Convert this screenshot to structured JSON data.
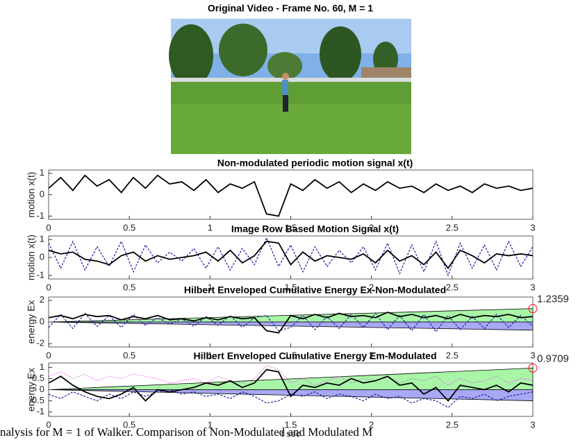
{
  "image": {
    "title": "Original Video - Frame No. 60, M = 1"
  },
  "chart_data": [
    {
      "type": "line",
      "title": "Non-modulated periodic motion signal x(t)",
      "ylabel": "motion x(t)",
      "xlim": [
        0,
        3
      ],
      "xticks": [
        0,
        0.5,
        1,
        1.5,
        2,
        2.5,
        3
      ],
      "ylim": [
        -1.15,
        1.15
      ],
      "yticks": [
        -1,
        0,
        1
      ],
      "x": [
        0,
        0.075,
        0.15,
        0.225,
        0.3,
        0.375,
        0.45,
        0.525,
        0.6,
        0.675,
        0.75,
        0.825,
        0.9,
        0.975,
        1.05,
        1.125,
        1.2,
        1.275,
        1.35,
        1.425,
        1.5,
        1.575,
        1.65,
        1.725,
        1.8,
        1.875,
        1.95,
        2.025,
        2.1,
        2.175,
        2.25,
        2.325,
        2.4,
        2.475,
        2.55,
        2.625,
        2.7,
        2.775,
        2.85,
        2.925,
        3
      ],
      "series": [
        {
          "color": "#000000",
          "style": "solid",
          "values": [
            0.3,
            0.8,
            0.2,
            0.9,
            0.4,
            0.7,
            0.1,
            0.8,
            0.3,
            0.9,
            0.5,
            0.6,
            0.2,
            0.7,
            0.1,
            0.5,
            0.3,
            0.6,
            -0.9,
            -1,
            0.5,
            0.2,
            0.7,
            0.3,
            0.6,
            0.1,
            0.5,
            0.2,
            0.6,
            0.3,
            0.4,
            0.1,
            0.5,
            0.2,
            0.4,
            0.1,
            0.5,
            0.3,
            0.4,
            0.2,
            0.3
          ]
        }
      ]
    },
    {
      "type": "line",
      "title": "Image Row Based Motion Signal x(t)",
      "ylabel": "motion x(t)",
      "xlim": [
        0,
        3
      ],
      "xticks": [
        0,
        0.5,
        1,
        1.5,
        2,
        2.5,
        3
      ],
      "ylim": [
        -1.2,
        1.2
      ],
      "yticks": [
        -1,
        0,
        1
      ],
      "x": [
        0,
        0.075,
        0.15,
        0.225,
        0.3,
        0.375,
        0.45,
        0.525,
        0.6,
        0.675,
        0.75,
        0.825,
        0.9,
        0.975,
        1.05,
        1.125,
        1.2,
        1.275,
        1.35,
        1.425,
        1.5,
        1.575,
        1.65,
        1.725,
        1.8,
        1.875,
        1.95,
        2.025,
        2.1,
        2.175,
        2.25,
        2.325,
        2.4,
        2.475,
        2.55,
        2.625,
        2.7,
        2.775,
        2.85,
        2.925,
        3
      ],
      "series": [
        {
          "color": "#1a1aa0",
          "style": "dashed",
          "values": [
            0.8,
            -0.6,
            0.9,
            -0.7,
            0.6,
            -0.5,
            0.9,
            -0.8,
            0.7,
            -0.3,
            0.3,
            -0.2,
            0.5,
            -0.6,
            0.6,
            -0.7,
            0.5,
            -0.4,
            1.1,
            -0.5,
            0.7,
            -0.8,
            0.6,
            -0.5,
            0.4,
            -0.3,
            0.6,
            -0.7,
            0.8,
            -0.9,
            0.7,
            -0.8,
            0.9,
            -1,
            0.8,
            -0.6,
            0.7,
            -0.7,
            0.9,
            -0.5,
            0.6
          ]
        },
        {
          "color": "#000000",
          "style": "solid",
          "values": [
            0.4,
            0.2,
            0.3,
            -0.1,
            -0.2,
            -0.4,
            0.1,
            0.3,
            -0.2,
            0.1,
            -0.1,
            0,
            0.1,
            0.3,
            -0.2,
            0.4,
            -0.3,
            0.1,
            0.9,
            0.8,
            -0.4,
            0.3,
            -0.2,
            0.1,
            0,
            -0.1,
            0.2,
            -0.3,
            0.4,
            -0.2,
            0.1,
            -0.4,
            0.3,
            -0.6,
            0.4,
            0.1,
            -0.3,
            0.2,
            0.1,
            0.2,
            0.1
          ]
        }
      ]
    },
    {
      "type": "line",
      "title": "Hilbert Enveloped Cumulative Energy Ex-Non-Modulated",
      "ylabel": "energy Ex",
      "xlim": [
        0,
        3
      ],
      "xticks": [
        0,
        0.5,
        1,
        1.5,
        2,
        2.5,
        3
      ],
      "ylim": [
        -2.3,
        2.3
      ],
      "yticks": [
        -2,
        0,
        2
      ],
      "area_x": [
        0,
        3
      ],
      "areas": [
        {
          "color": "#a8f5a8",
          "values": [
            0,
            1.2359
          ]
        },
        {
          "color": "#a8a8f5",
          "values": [
            0,
            -0.75
          ]
        }
      ],
      "annotation": {
        "x": 3,
        "y": 1.2359,
        "color": "#ff3030"
      },
      "x": [
        0,
        0.075,
        0.15,
        0.225,
        0.3,
        0.375,
        0.45,
        0.525,
        0.6,
        0.675,
        0.75,
        0.825,
        0.9,
        0.975,
        1.05,
        1.125,
        1.2,
        1.275,
        1.35,
        1.425,
        1.5,
        1.575,
        1.65,
        1.725,
        1.8,
        1.875,
        1.95,
        2.025,
        2.1,
        2.175,
        2.25,
        2.325,
        2.4,
        2.475,
        2.55,
        2.625,
        2.7,
        2.775,
        2.85,
        2.925,
        3
      ],
      "series": [
        {
          "color": "#1a1aa0",
          "style": "dashed",
          "values": [
            -0.5,
            0.7,
            -0.6,
            0.8,
            -0.4,
            0.6,
            -0.5,
            0.7,
            -0.3,
            0.4,
            -0.2,
            0.3,
            -0.4,
            0.5,
            -0.3,
            0.6,
            -0.5,
            0.4,
            0.6,
            -0.8,
            -0.5,
            0.6,
            -0.7,
            0.5,
            -0.6,
            0.7,
            -0.5,
            0.8,
            -0.7,
            0.6,
            -0.8,
            0.7,
            -0.9,
            0.6,
            -0.7,
            0.5,
            -0.6,
            0.7,
            -0.5,
            0.6,
            -0.4
          ]
        },
        {
          "color": "#000000",
          "style": "solid",
          "values": [
            0.4,
            0.6,
            0.3,
            0.7,
            0.5,
            0.6,
            0.2,
            0.5,
            0.3,
            0.6,
            0.2,
            0.3,
            0.1,
            0.4,
            0.2,
            0.5,
            0.3,
            0.4,
            -0.8,
            -1,
            0.6,
            0.3,
            0.7,
            0.4,
            0.8,
            0.5,
            0.6,
            0.4,
            0.9,
            0.5,
            0.7,
            0.4,
            0.6,
            0.3,
            0.7,
            0.4,
            0.6,
            0.5,
            0.7,
            0.4,
            0.5
          ]
        }
      ]
    },
    {
      "type": "line",
      "title": "Hilbert Enveloped Cumulative Energy Em-Modulated",
      "ylabel": "energy Ex",
      "xlabel": "t sec",
      "xlim": [
        0,
        3
      ],
      "xticks": [
        0,
        0.5,
        1,
        1.5,
        2,
        2.5,
        3
      ],
      "ylim": [
        -1.2,
        1.2
      ],
      "yticks": [
        -1,
        -0.5,
        0,
        0.5,
        1
      ],
      "area_x": [
        0,
        3
      ],
      "areas": [
        {
          "color": "#a8f5a8",
          "values": [
            0,
            0.9709
          ]
        },
        {
          "color": "#a8a8f5",
          "values": [
            0,
            -0.5
          ]
        }
      ],
      "annotation": {
        "x": 3,
        "y": 0.9709,
        "color": "#ff3030"
      },
      "x": [
        0,
        0.075,
        0.15,
        0.225,
        0.3,
        0.375,
        0.45,
        0.525,
        0.6,
        0.675,
        0.75,
        0.825,
        0.9,
        0.975,
        1.05,
        1.125,
        1.2,
        1.275,
        1.35,
        1.425,
        1.5,
        1.575,
        1.65,
        1.725,
        1.8,
        1.875,
        1.95,
        2.025,
        2.1,
        2.175,
        2.25,
        2.325,
        2.4,
        2.475,
        2.55,
        2.625,
        2.7,
        2.775,
        2.85,
        2.925,
        3
      ],
      "series": [
        {
          "color": "#e040e0",
          "style": "dotted",
          "values": [
            0.6,
            0.8,
            0.5,
            0.7,
            0.4,
            0.6,
            0.5,
            0.7,
            0.6,
            0.5,
            0.3,
            0.4,
            0.5,
            0.3,
            0.6,
            0.4,
            0.3,
            0.5,
            1.1,
            0.9,
            0.3,
            0.5,
            0.2,
            0.4,
            0.6,
            0.3,
            0.5,
            0.4,
            0.6,
            0.3,
            0.5,
            0.4,
            0.6,
            0.2,
            0.5,
            0.3,
            0.4,
            0.6,
            0.3,
            0.5,
            0.4
          ]
        },
        {
          "color": "#1a1aa0",
          "style": "dashed",
          "values": [
            -0.2,
            -0.4,
            -0.1,
            -0.3,
            -0.5,
            -0.2,
            -0.4,
            -0.1,
            -0.3,
            -0.1,
            0,
            -0.2,
            -0.1,
            -0.3,
            -0.2,
            -0.4,
            -0.1,
            -0.3,
            -0.6,
            -0.5,
            -0.2,
            -0.3,
            -0.1,
            -0.4,
            -0.2,
            -0.3,
            -0.5,
            -0.2,
            -0.4,
            -0.3,
            -0.6,
            -0.4,
            -0.5,
            -0.8,
            -0.3,
            -0.4,
            -0.2,
            -0.5,
            -0.3,
            -0.2,
            -0.1
          ]
        },
        {
          "color": "#000000",
          "style": "solid",
          "values": [
            0.3,
            0.6,
            0.2,
            -0.1,
            -0.3,
            -0.4,
            -0.2,
            0.1,
            -0.5,
            0,
            -0.1,
            0,
            0.1,
            0.3,
            0.2,
            0.4,
            0.1,
            0.3,
            0.9,
            0.8,
            -0.3,
            0.2,
            0.1,
            0.3,
            0.2,
            0.5,
            0.3,
            0.4,
            0.6,
            0.2,
            0.3,
            -0.2,
            0.1,
            -0.5,
            0.2,
            0.1,
            0,
            0.2,
            -0.1,
            0.3,
            0.2
          ]
        }
      ]
    }
  ],
  "caption": "nalysis for M = 1 of Walker. Comparison of Non-Modulated and Modulated M"
}
